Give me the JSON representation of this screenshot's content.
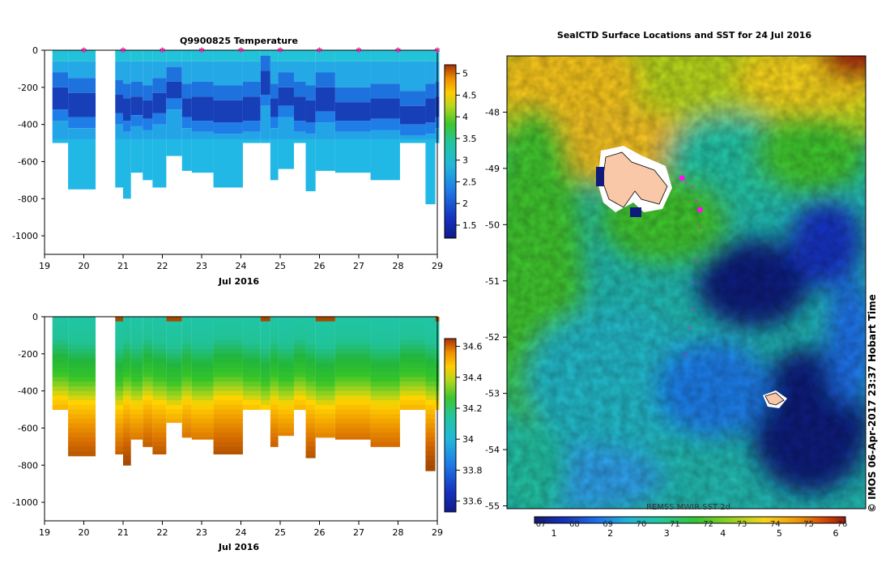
{
  "chart_data": [
    {
      "type": "heatmap",
      "title": "Q9900825  Temperature",
      "xlabel": "Jul 2016",
      "ylabel": "",
      "x_ticks": [
        "19",
        "20",
        "21",
        "22",
        "23",
        "24",
        "25",
        "26",
        "27",
        "28",
        "29"
      ],
      "y_ticks": [
        "0",
        "-200",
        "-400",
        "-600",
        "-800",
        "-1000"
      ],
      "xlim": [
        19,
        29
      ],
      "ylim": [
        -1100,
        0
      ],
      "colorbar": {
        "min": 1.2,
        "max": 5.2,
        "ticks": [
          "1.5",
          "2",
          "2.5",
          "3",
          "3.5",
          "4",
          "4.5",
          "5"
        ],
        "tick_values": [
          1.5,
          2,
          2.5,
          3,
          3.5,
          4,
          4.5,
          5
        ]
      },
      "profiles": [
        {
          "x0": 19.2,
          "x1": 19.6,
          "bottom": -500,
          "cold_top": -200,
          "cold_bot": -320
        },
        {
          "x0": 19.6,
          "x1": 20.3,
          "bottom": -750,
          "cold_top": -230,
          "cold_bot": -360
        },
        {
          "x0": 20.8,
          "x1": 21.0,
          "bottom": -740,
          "cold_top": -240,
          "cold_bot": -340
        },
        {
          "x0": 21.0,
          "x1": 21.2,
          "bottom": -800,
          "cold_top": -260,
          "cold_bot": -380
        },
        {
          "x0": 21.2,
          "x1": 21.5,
          "bottom": -660,
          "cold_top": -250,
          "cold_bot": -350
        },
        {
          "x0": 21.5,
          "x1": 21.75,
          "bottom": -700,
          "cold_top": -270,
          "cold_bot": -370
        },
        {
          "x0": 21.75,
          "x1": 22.1,
          "bottom": -740,
          "cold_top": -230,
          "cold_bot": -340
        },
        {
          "x0": 22.1,
          "x1": 22.5,
          "bottom": -570,
          "cold_top": -170,
          "cold_bot": -260
        },
        {
          "x0": 22.5,
          "x1": 22.75,
          "bottom": -650,
          "cold_top": -260,
          "cold_bot": -360
        },
        {
          "x0": 22.75,
          "x1": 23.3,
          "bottom": -660,
          "cold_top": -250,
          "cold_bot": -380
        },
        {
          "x0": 23.3,
          "x1": 24.05,
          "bottom": -740,
          "cold_top": -270,
          "cold_bot": -390
        },
        {
          "x0": 24.05,
          "x1": 24.5,
          "bottom": -500,
          "cold_top": -250,
          "cold_bot": -380
        },
        {
          "x0": 24.5,
          "x1": 24.75,
          "bottom": -500,
          "cold_top": -110,
          "cold_bot": -240
        },
        {
          "x0": 24.75,
          "x1": 24.95,
          "bottom": -700,
          "cold_top": -260,
          "cold_bot": -360
        },
        {
          "x0": 24.95,
          "x1": 25.35,
          "bottom": -640,
          "cold_top": -200,
          "cold_bot": -300
        },
        {
          "x0": 25.35,
          "x1": 25.65,
          "bottom": -500,
          "cold_top": -250,
          "cold_bot": -380
        },
        {
          "x0": 25.65,
          "x1": 25.9,
          "bottom": -760,
          "cold_top": -270,
          "cold_bot": -390
        },
        {
          "x0": 25.9,
          "x1": 26.4,
          "bottom": -650,
          "cold_top": -200,
          "cold_bot": -330
        },
        {
          "x0": 26.4,
          "x1": 27.3,
          "bottom": -660,
          "cold_top": -280,
          "cold_bot": -380
        },
        {
          "x0": 27.3,
          "x1": 28.05,
          "bottom": -700,
          "cold_top": -260,
          "cold_bot": -370
        },
        {
          "x0": 28.05,
          "x1": 28.7,
          "bottom": -500,
          "cold_top": -300,
          "cold_bot": -400
        },
        {
          "x0": 28.7,
          "x1": 28.95,
          "bottom": -830,
          "cold_top": -260,
          "cold_bot": -390
        },
        {
          "x0": 28.95,
          "x1": 29.05,
          "bottom": -500,
          "cold_top": -250,
          "cold_bot": -360
        }
      ],
      "markers_x": [
        20.0,
        21.0,
        22.0,
        23.0,
        24.0,
        25.0,
        26.0,
        27.0,
        28.0,
        29.0
      ]
    },
    {
      "type": "heatmap",
      "title": "",
      "xlabel": "Jul 2016",
      "ylabel": "",
      "x_ticks": [
        "19",
        "20",
        "21",
        "22",
        "23",
        "24",
        "25",
        "26",
        "27",
        "28",
        "29"
      ],
      "y_ticks": [
        "0",
        "-200",
        "-400",
        "-600",
        "-800",
        "-1000"
      ],
      "xlim": [
        19,
        29
      ],
      "ylim": [
        -1100,
        0
      ],
      "colorbar": {
        "min": 33.53,
        "max": 34.65,
        "ticks": [
          "33.6",
          "33.8",
          "34",
          "34.2",
          "34.4",
          "34.6"
        ],
        "tick_values": [
          33.6,
          33.8,
          34.0,
          34.2,
          34.4,
          34.6
        ]
      },
      "gradient": [
        {
          "depth": 0,
          "color": "#1fc5a6"
        },
        {
          "depth": -140,
          "color": "#21c296"
        },
        {
          "depth": -240,
          "color": "#22b63c"
        },
        {
          "depth": -330,
          "color": "#35c428"
        },
        {
          "depth": -400,
          "color": "#9ad21e"
        },
        {
          "depth": -460,
          "color": "#ffd400"
        },
        {
          "depth": -560,
          "color": "#f2a000"
        },
        {
          "depth": -680,
          "color": "#d46a00"
        },
        {
          "depth": -800,
          "color": "#a44a00"
        }
      ]
    },
    {
      "type": "heatmap",
      "title": "SealCTD Surface Locations and SST for 24 Jul 2016",
      "xlabel": "",
      "ylabel": "",
      "y_ticks": [
        "-48",
        "-49",
        "-50",
        "-51",
        "-52",
        "-53",
        "-54",
        "-55"
      ],
      "y_tick_values": [
        -48,
        -49,
        -50,
        -51,
        -52,
        -53,
        -54,
        -55
      ],
      "ylim": [
        -55.05,
        -47.0
      ],
      "colorbar_label": "REMSS MWIR SST 2d",
      "colorbar_ticks_top": [
        "67",
        "68",
        "69",
        "70",
        "71",
        "72",
        "73",
        "74",
        "75",
        "76"
      ],
      "colorbar_ticks_bottom": [
        "1",
        "2",
        "3",
        "4",
        "5",
        "6"
      ],
      "colorbar_colors": [
        "#151a7a",
        "#1535b8",
        "#1e6fe8",
        "#22b3d8",
        "#23c7a0",
        "#35c434",
        "#9ad21e",
        "#f6d31b",
        "#f09b0a",
        "#d24c08",
        "#9a1a05"
      ],
      "seal_track_lat_lon_frac": [
        [
          0.33,
          0.73
        ],
        [
          0.34,
          0.72
        ],
        [
          0.36,
          0.71
        ],
        [
          0.37,
          0.68
        ],
        [
          0.38,
          0.62
        ],
        [
          0.37,
          0.55
        ],
        [
          0.36,
          0.5
        ],
        [
          0.36,
          0.44
        ],
        [
          0.35,
          0.4
        ],
        [
          0.34,
          0.34
        ],
        [
          0.38,
          0.66
        ]
      ],
      "credit": "© IMOS 06-Apr-2017 23:37 Hobart Time"
    }
  ]
}
